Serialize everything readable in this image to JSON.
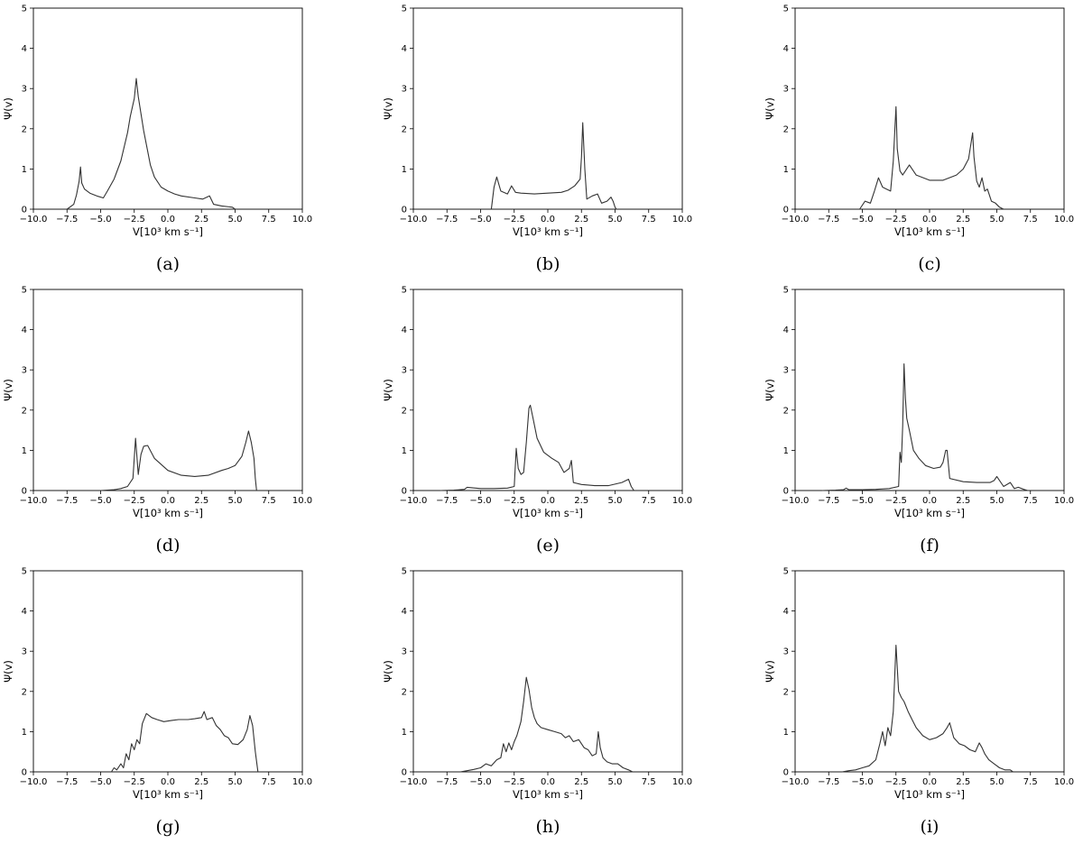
{
  "chart_data": [
    {
      "type": "line",
      "caption": "(a)",
      "xlabel": "V[10³ km s⁻¹]",
      "ylabel": "Ψ(v)",
      "xlim": [
        -10,
        10
      ],
      "ylim": [
        0,
        5
      ],
      "xticks": [
        "−10.0",
        "−7.5",
        "−5.0",
        "−2.5",
        "0.0",
        "2.5",
        "5.0",
        "7.5",
        "10.0"
      ],
      "yticks": [
        "0",
        "1",
        "2",
        "3",
        "4",
        "5"
      ],
      "series": [
        {
          "x": [
            -7.5,
            -7.0,
            -6.8,
            -6.6,
            -6.5,
            -6.4,
            -6.2,
            -5.8,
            -5.2,
            -4.8,
            -4.5,
            -4.0,
            -3.5,
            -3.0,
            -2.8,
            -2.5,
            -2.35,
            -2.2,
            -1.8,
            -1.3,
            -1.0,
            -0.5,
            0.0,
            0.5,
            1.0,
            2.0,
            2.6,
            3.1,
            3.4,
            4.0,
            4.8,
            5.0
          ],
          "y": [
            0.0,
            0.12,
            0.35,
            0.7,
            1.05,
            0.65,
            0.5,
            0.4,
            0.32,
            0.28,
            0.45,
            0.75,
            1.2,
            1.9,
            2.3,
            2.75,
            3.25,
            2.8,
            1.95,
            1.1,
            0.8,
            0.55,
            0.45,
            0.38,
            0.33,
            0.28,
            0.25,
            0.33,
            0.12,
            0.08,
            0.05,
            0.0
          ]
        }
      ]
    },
    {
      "type": "line",
      "caption": "(b)",
      "xlabel": "V[10³ km s⁻¹]",
      "ylabel": "Ψ(v)",
      "xlim": [
        -10,
        10
      ],
      "ylim": [
        0,
        5
      ],
      "xticks": [
        "−10.0",
        "−7.5",
        "−5.0",
        "−2.5",
        "0.0",
        "2.5",
        "5.0",
        "7.5",
        "10.0"
      ],
      "yticks": [
        "0",
        "1",
        "2",
        "3",
        "4",
        "5"
      ],
      "series": [
        {
          "x": [
            -4.2,
            -4.0,
            -3.8,
            -3.5,
            -3.0,
            -2.7,
            -2.4,
            -2.0,
            -1.0,
            0.0,
            1.0,
            1.5,
            2.0,
            2.4,
            2.5,
            2.6,
            2.75,
            2.9,
            3.3,
            3.7,
            4.0,
            4.4,
            4.7,
            4.85,
            5.0,
            5.1
          ],
          "y": [
            0.0,
            0.55,
            0.8,
            0.45,
            0.38,
            0.58,
            0.42,
            0.4,
            0.38,
            0.4,
            0.42,
            0.47,
            0.58,
            0.75,
            1.3,
            2.15,
            1.0,
            0.25,
            0.33,
            0.38,
            0.15,
            0.2,
            0.3,
            0.2,
            0.05,
            0.0
          ]
        }
      ]
    },
    {
      "type": "line",
      "caption": "(c)",
      "xlabel": "V[10³ km s⁻¹]",
      "ylabel": "Ψ(v)",
      "xlim": [
        -10,
        10
      ],
      "ylim": [
        0,
        5
      ],
      "xticks": [
        "−10.0",
        "−7.5",
        "−5.0",
        "−2.5",
        "0.0",
        "2.5",
        "5.0",
        "7.5",
        "10.0"
      ],
      "yticks": [
        "0",
        "1",
        "2",
        "3",
        "4",
        "5"
      ],
      "series": [
        {
          "x": [
            -5.2,
            -4.8,
            -4.4,
            -4.1,
            -3.8,
            -3.5,
            -3.2,
            -2.9,
            -2.7,
            -2.5,
            -2.4,
            -2.2,
            -2.0,
            -1.8,
            -1.5,
            -1.0,
            0.0,
            1.0,
            2.0,
            2.5,
            2.9,
            3.2,
            3.3,
            3.5,
            3.7,
            3.9,
            4.1,
            4.3,
            4.6,
            4.9,
            5.2,
            5.5
          ],
          "y": [
            0.0,
            0.2,
            0.15,
            0.45,
            0.78,
            0.55,
            0.5,
            0.45,
            1.2,
            2.55,
            1.5,
            0.95,
            0.85,
            0.95,
            1.1,
            0.85,
            0.72,
            0.72,
            0.85,
            1.0,
            1.25,
            1.9,
            1.3,
            0.7,
            0.55,
            0.78,
            0.45,
            0.5,
            0.2,
            0.15,
            0.05,
            0.0
          ]
        }
      ]
    },
    {
      "type": "line",
      "caption": "(d)",
      "xlabel": "V[10³ km s⁻¹]",
      "ylabel": "Ψ(v)",
      "xlim": [
        -10,
        10
      ],
      "ylim": [
        0,
        5
      ],
      "xticks": [
        "−10.0",
        "−7.5",
        "−5.0",
        "−2.5",
        "0.0",
        "2.5",
        "5.0",
        "7.5",
        "10.0"
      ],
      "yticks": [
        "0",
        "1",
        "2",
        "3",
        "4",
        "5"
      ],
      "series": [
        {
          "x": [
            -5.0,
            -4.0,
            -3.5,
            -3.0,
            -2.6,
            -2.4,
            -2.2,
            -2.0,
            -1.8,
            -1.5,
            -1.0,
            0.0,
            1.0,
            2.0,
            3.0,
            4.0,
            4.5,
            5.0,
            5.5,
            5.8,
            6.0,
            6.2,
            6.4,
            6.5,
            6.6
          ],
          "y": [
            0.0,
            0.02,
            0.05,
            0.1,
            0.3,
            1.3,
            0.4,
            0.9,
            1.1,
            1.12,
            0.8,
            0.5,
            0.38,
            0.35,
            0.38,
            0.5,
            0.55,
            0.62,
            0.85,
            1.2,
            1.48,
            1.2,
            0.8,
            0.3,
            0.0
          ]
        }
      ]
    },
    {
      "type": "line",
      "caption": "(e)",
      "xlabel": "V[10³ km s⁻¹]",
      "ylabel": "Ψ(v)",
      "xlim": [
        -10,
        10
      ],
      "ylim": [
        0,
        5
      ],
      "xticks": [
        "−10.0",
        "−7.5",
        "−5.0",
        "−2.5",
        "0.0",
        "2.5",
        "5.0",
        "7.5",
        "10.0"
      ],
      "yticks": [
        "0",
        "1",
        "2",
        "3",
        "4",
        "5"
      ],
      "series": [
        {
          "x": [
            -8.0,
            -7.0,
            -6.2,
            -6.0,
            -5.0,
            -4.0,
            -3.0,
            -2.5,
            -2.35,
            -2.2,
            -2.0,
            -1.8,
            -1.6,
            -1.4,
            -1.3,
            -1.1,
            -0.8,
            -0.3,
            0.3,
            0.8,
            1.2,
            1.4,
            1.6,
            1.75,
            1.9,
            2.5,
            3.5,
            4.5,
            5.5,
            6.0,
            6.2,
            6.4
          ],
          "y": [
            0.0,
            0.01,
            0.03,
            0.08,
            0.05,
            0.05,
            0.06,
            0.1,
            1.05,
            0.55,
            0.4,
            0.45,
            1.2,
            2.05,
            2.12,
            1.8,
            1.3,
            0.95,
            0.8,
            0.7,
            0.45,
            0.5,
            0.55,
            0.75,
            0.2,
            0.15,
            0.12,
            0.12,
            0.2,
            0.28,
            0.1,
            0.0
          ]
        }
      ]
    },
    {
      "type": "line",
      "caption": "(f)",
      "xlabel": "V[10³ km s⁻¹]",
      "ylabel": "Ψ(v)",
      "xlim": [
        -10,
        10
      ],
      "ylim": [
        0,
        5
      ],
      "xticks": [
        "−10.0",
        "−7.5",
        "−5.0",
        "−2.5",
        "0.0",
        "2.5",
        "5.0",
        "7.5",
        "10.0"
      ],
      "yticks": [
        "0",
        "1",
        "2",
        "3",
        "4",
        "5"
      ],
      "series": [
        {
          "x": [
            -8.0,
            -7.0,
            -6.4,
            -6.2,
            -6.0,
            -5.0,
            -4.0,
            -3.0,
            -2.3,
            -2.2,
            -2.1,
            -2.0,
            -1.9,
            -1.8,
            -1.7,
            -1.5,
            -1.2,
            -0.8,
            -0.3,
            0.3,
            0.8,
            1.0,
            1.2,
            1.3,
            1.5,
            2.5,
            3.5,
            4.5,
            4.8,
            5.0,
            5.5,
            6.0,
            6.3,
            6.6,
            7.0,
            7.3
          ],
          "y": [
            0.0,
            0.01,
            0.02,
            0.06,
            0.02,
            0.02,
            0.03,
            0.05,
            0.1,
            0.95,
            0.7,
            1.6,
            3.15,
            2.3,
            1.8,
            1.5,
            1.0,
            0.8,
            0.62,
            0.55,
            0.58,
            0.7,
            1.0,
            1.0,
            0.3,
            0.22,
            0.2,
            0.2,
            0.25,
            0.35,
            0.1,
            0.2,
            0.05,
            0.08,
            0.03,
            0.0
          ]
        }
      ]
    },
    {
      "type": "line",
      "caption": "(g)",
      "xlabel": "V[10³ km s⁻¹]",
      "ylabel": "Ψ(v)",
      "xlim": [
        -10,
        10
      ],
      "ylim": [
        0,
        5
      ],
      "xticks": [
        "−10.0",
        "−7.5",
        "−5.0",
        "−2.5",
        "0.0",
        "2.5",
        "5.0",
        "7.5",
        "10.0"
      ],
      "yticks": [
        "0",
        "1",
        "2",
        "3",
        "4",
        "5"
      ],
      "series": [
        {
          "x": [
            -4.2,
            -4.0,
            -3.8,
            -3.5,
            -3.3,
            -3.1,
            -2.9,
            -2.7,
            -2.5,
            -2.3,
            -2.1,
            -1.9,
            -1.6,
            -1.2,
            -0.8,
            -0.3,
            0.3,
            0.8,
            1.5,
            2.0,
            2.5,
            2.7,
            2.9,
            3.3,
            3.6,
            3.9,
            4.2,
            4.5,
            4.8,
            5.2,
            5.6,
            5.9,
            6.1,
            6.3,
            6.5,
            6.7
          ],
          "y": [
            0.0,
            0.1,
            0.05,
            0.2,
            0.1,
            0.45,
            0.3,
            0.7,
            0.55,
            0.8,
            0.7,
            1.2,
            1.45,
            1.35,
            1.3,
            1.25,
            1.28,
            1.3,
            1.3,
            1.32,
            1.35,
            1.5,
            1.3,
            1.35,
            1.15,
            1.05,
            0.9,
            0.85,
            0.7,
            0.68,
            0.8,
            1.05,
            1.4,
            1.15,
            0.5,
            0.0
          ]
        }
      ]
    },
    {
      "type": "line",
      "caption": "(h)",
      "xlabel": "V[10³ km s⁻¹]",
      "ylabel": "Ψ(v)",
      "xlim": [
        -10,
        10
      ],
      "ylim": [
        0,
        5
      ],
      "xticks": [
        "−10.0",
        "−7.5",
        "−5.0",
        "−2.5",
        "0.0",
        "2.5",
        "5.0",
        "7.5",
        "10.0"
      ],
      "yticks": [
        "0",
        "1",
        "2",
        "3",
        "4",
        "5"
      ],
      "series": [
        {
          "x": [
            -6.5,
            -6.0,
            -5.5,
            -5.0,
            -4.6,
            -4.2,
            -3.8,
            -3.5,
            -3.3,
            -3.1,
            -2.9,
            -2.7,
            -2.5,
            -2.3,
            -2.0,
            -1.8,
            -1.6,
            -1.4,
            -1.2,
            -1.0,
            -0.8,
            -0.5,
            0.0,
            0.5,
            1.0,
            1.3,
            1.6,
            1.9,
            2.3,
            2.7,
            3.0,
            3.3,
            3.6,
            3.75,
            3.9,
            4.1,
            4.4,
            4.8,
            5.2,
            5.6,
            6.0,
            6.3
          ],
          "y": [
            0.0,
            0.03,
            0.06,
            0.1,
            0.2,
            0.15,
            0.3,
            0.35,
            0.7,
            0.5,
            0.72,
            0.55,
            0.75,
            0.9,
            1.25,
            1.75,
            2.35,
            2.05,
            1.6,
            1.35,
            1.2,
            1.1,
            1.05,
            1.0,
            0.95,
            0.85,
            0.9,
            0.75,
            0.8,
            0.6,
            0.55,
            0.4,
            0.45,
            1.0,
            0.6,
            0.35,
            0.25,
            0.2,
            0.2,
            0.1,
            0.05,
            0.0
          ]
        }
      ]
    },
    {
      "type": "line",
      "caption": "(i)",
      "xlabel": "V[10³ km s⁻¹]",
      "ylabel": "Ψ(v)",
      "xlim": [
        -10,
        10
      ],
      "ylim": [
        0,
        5
      ],
      "xticks": [
        "−10.0",
        "−7.5",
        "−5.0",
        "−2.5",
        "0.0",
        "2.5",
        "5.0",
        "7.5",
        "10.0"
      ],
      "yticks": [
        "0",
        "1",
        "2",
        "3",
        "4",
        "5"
      ],
      "series": [
        {
          "x": [
            -6.5,
            -6.0,
            -5.5,
            -5.0,
            -4.5,
            -4.0,
            -3.7,
            -3.5,
            -3.3,
            -3.1,
            -2.9,
            -2.7,
            -2.5,
            -2.3,
            -2.1,
            -1.9,
            -1.6,
            -1.3,
            -1.0,
            -0.5,
            0.0,
            0.5,
            1.0,
            1.3,
            1.5,
            1.8,
            2.2,
            2.6,
            3.0,
            3.4,
            3.7,
            3.9,
            4.1,
            4.4,
            4.8,
            5.2,
            5.6,
            6.0,
            6.2
          ],
          "y": [
            0.0,
            0.03,
            0.05,
            0.1,
            0.15,
            0.3,
            0.7,
            1.0,
            0.65,
            1.1,
            0.9,
            1.5,
            3.15,
            2.0,
            1.85,
            1.75,
            1.5,
            1.3,
            1.1,
            0.9,
            0.8,
            0.85,
            0.95,
            1.1,
            1.22,
            0.85,
            0.7,
            0.65,
            0.55,
            0.5,
            0.72,
            0.6,
            0.45,
            0.3,
            0.2,
            0.1,
            0.05,
            0.05,
            0.0
          ]
        }
      ]
    }
  ]
}
